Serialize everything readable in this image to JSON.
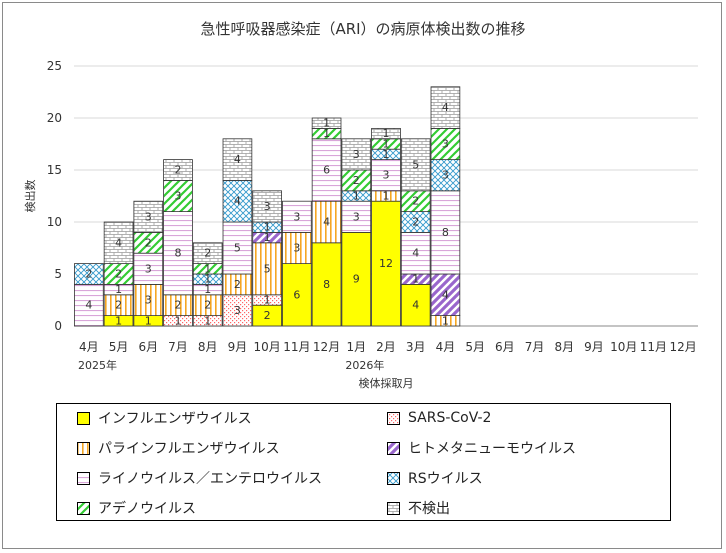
{
  "colors": {
    "influenza": "#ffff00",
    "parainfluenza": "#f5a623",
    "rhino_entero": "#d9a6d9",
    "adeno": "#33cc33",
    "sars_cov_2": "#ff6666",
    "hmpv": "#9966cc",
    "rsv": "#3399cc",
    "negative": "#999999"
  },
  "chart_data": {
    "type": "bar",
    "stacked": true,
    "title": "急性呼吸器感染症（ARI）の病原体検出数の推移",
    "ylabel": "検出数",
    "xlabel": "検体採取月",
    "ylim": [
      0,
      25
    ],
    "yticks": [
      0,
      5,
      10,
      15,
      20,
      25
    ],
    "grid": true,
    "legend_position": "bottom",
    "categories": [
      "4月",
      "5月",
      "6月",
      "7月",
      "8月",
      "9月",
      "10月",
      "11月",
      "12月",
      "1月",
      "2月",
      "3月",
      "4月",
      "5月",
      "6月",
      "7月",
      "8月",
      "9月",
      "10月",
      "11月",
      "12月"
    ],
    "year_labels": [
      {
        "category_index": 0,
        "label": "2025年"
      },
      {
        "category_index": 9,
        "label": "2026年"
      }
    ],
    "series": [
      {
        "key": "influenza",
        "name": "インフルエンザウイルス",
        "pattern": "solid",
        "values": [
          0,
          1,
          1,
          0,
          0,
          0,
          2,
          6,
          8,
          9,
          12,
          4,
          0,
          0,
          0,
          0,
          0,
          0,
          0,
          0,
          0
        ]
      },
      {
        "key": "sars_cov_2",
        "name": "SARS-CoV-2",
        "pattern": "dots",
        "values": [
          0,
          0,
          0,
          1,
          1,
          3,
          1,
          0,
          0,
          0,
          0,
          0,
          0,
          0,
          0,
          0,
          0,
          0,
          0,
          0,
          0
        ]
      },
      {
        "key": "parainfluenza",
        "name": "パラインフルエンザウイルス",
        "pattern": "vertical",
        "values": [
          0,
          2,
          3,
          2,
          2,
          2,
          5,
          3,
          4,
          0,
          1,
          0,
          1,
          0,
          0,
          0,
          0,
          0,
          0,
          0,
          0
        ]
      },
      {
        "key": "hmpv",
        "name": "ヒトメタニューモウイルス",
        "pattern": "wide-diagonal",
        "values": [
          0,
          0,
          0,
          0,
          0,
          0,
          1,
          0,
          0,
          0,
          0,
          1,
          4,
          0,
          0,
          0,
          0,
          0,
          0,
          0,
          0
        ]
      },
      {
        "key": "rhino_entero",
        "name": "ライノウイルス／エンテロウイルス",
        "pattern": "horizontal",
        "values": [
          4,
          1,
          3,
          8,
          1,
          5,
          0,
          3,
          6,
          3,
          3,
          4,
          8,
          0,
          0,
          0,
          0,
          0,
          0,
          0,
          0
        ]
      },
      {
        "key": "rsv",
        "name": "RSウイルス",
        "pattern": "cross",
        "values": [
          2,
          0,
          0,
          0,
          1,
          4,
          1,
          0,
          0,
          1,
          1,
          2,
          3,
          0,
          0,
          0,
          0,
          0,
          0,
          0,
          0
        ]
      },
      {
        "key": "adeno",
        "name": "アデノウイルス",
        "pattern": "diagonal",
        "values": [
          0,
          2,
          2,
          3,
          1,
          0,
          0,
          0,
          1,
          2,
          1,
          2,
          3,
          0,
          0,
          0,
          0,
          0,
          0,
          0,
          0
        ]
      },
      {
        "key": "negative",
        "name": "不検出",
        "pattern": "brick",
        "values": [
          0,
          4,
          3,
          2,
          2,
          4,
          3,
          0,
          1,
          3,
          1,
          5,
          4,
          0,
          0,
          0,
          0,
          0,
          0,
          0,
          0
        ]
      }
    ],
    "legend_order": [
      "influenza",
      "sars_cov_2",
      "parainfluenza",
      "hmpv",
      "rhino_entero",
      "rsv",
      "adeno",
      "negative"
    ]
  }
}
